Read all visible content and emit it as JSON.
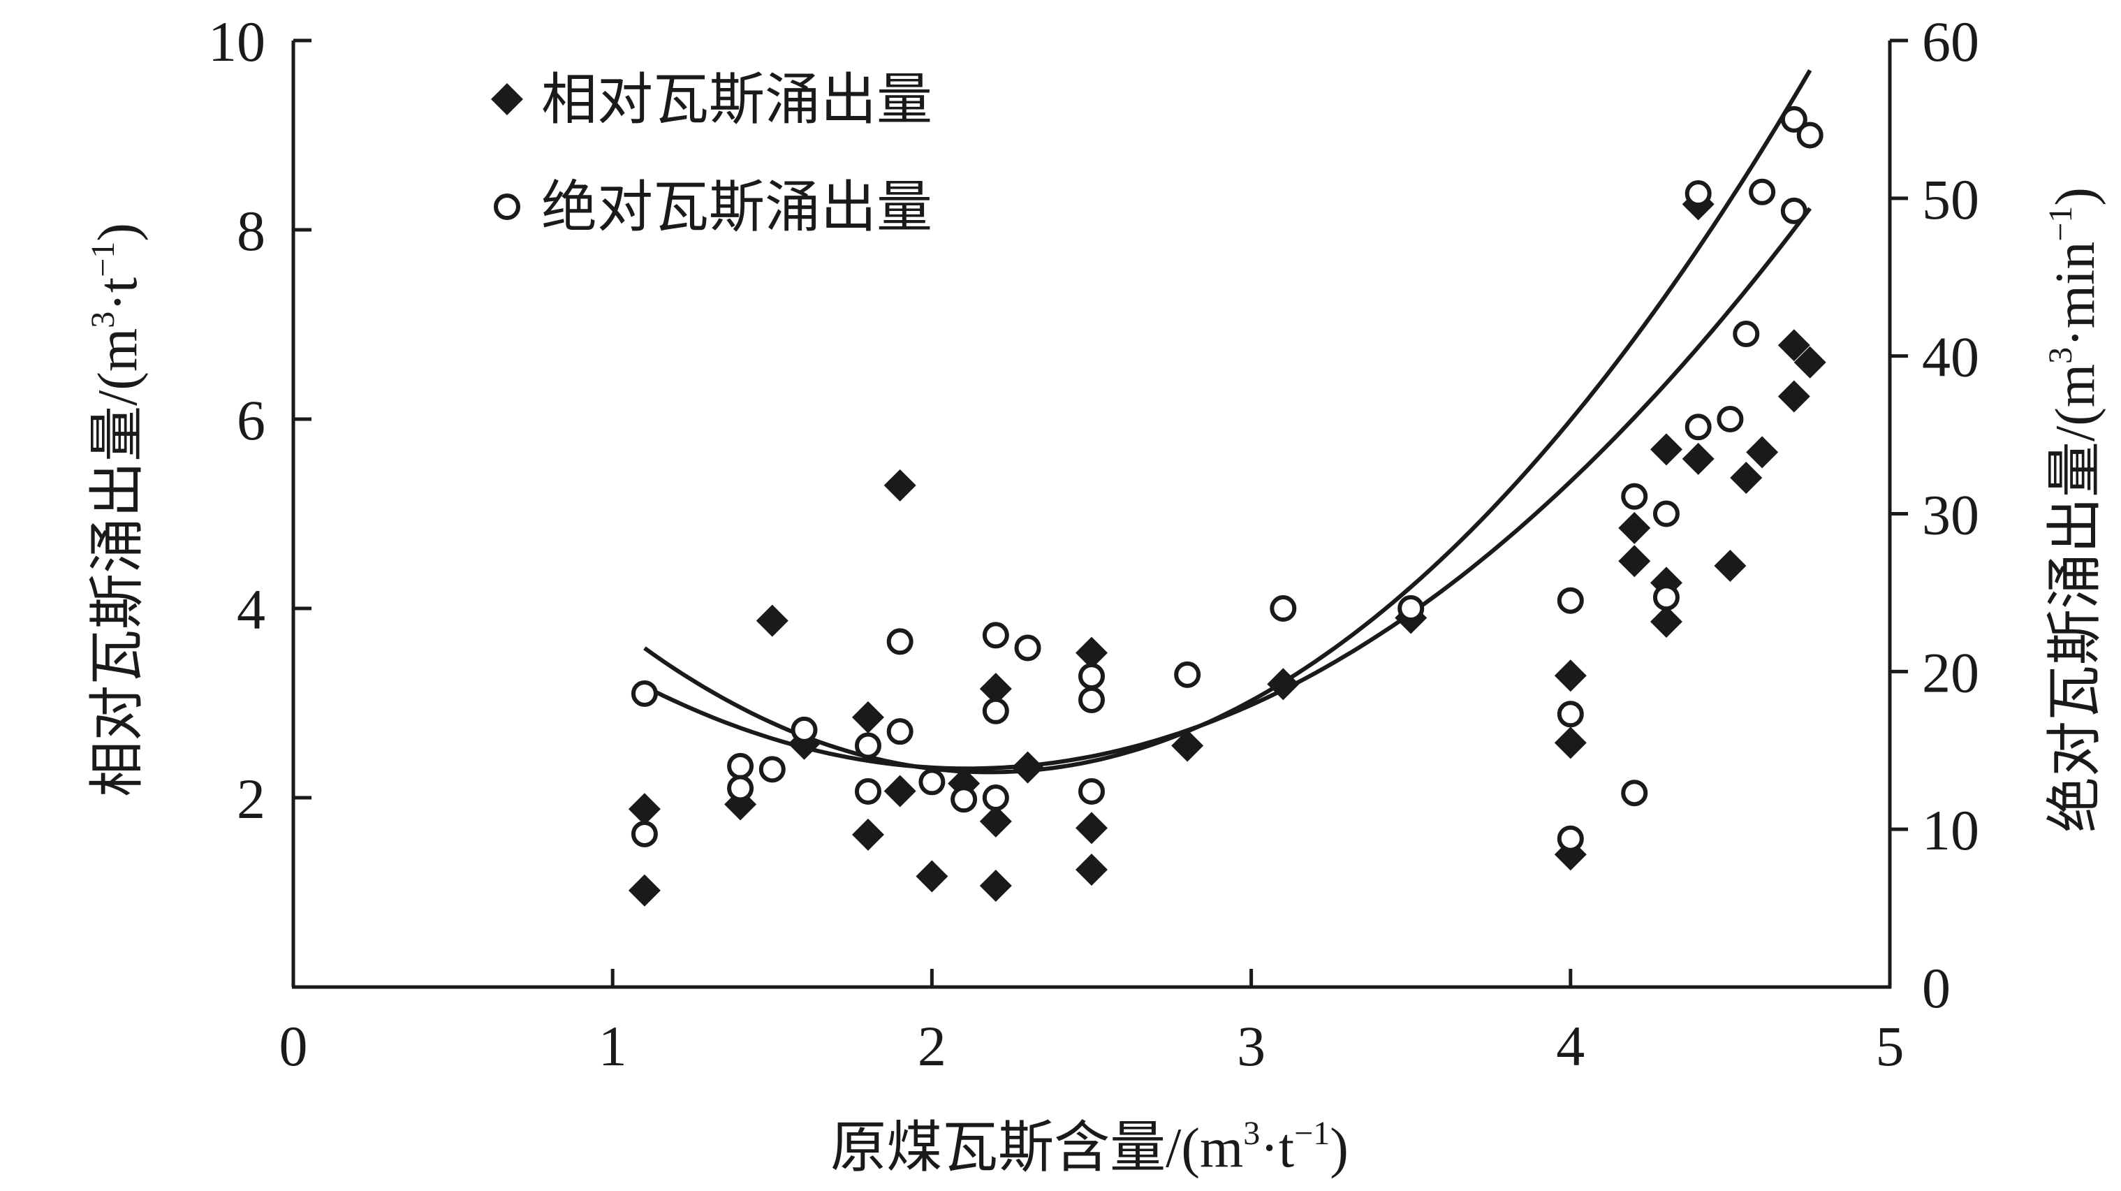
{
  "chart_data": {
    "type": "scatter",
    "xlabel": {
      "main": "原煤瓦斯含量/(m",
      "sup1": "3",
      "mid": "·t",
      "sup2": "−1",
      "end": ")"
    },
    "ylabel_left": {
      "main": "相对瓦斯涌出量/(m",
      "sup1": "3",
      "mid": "·t",
      "sup2": "−1",
      "end": ")"
    },
    "ylabel_right": {
      "main": "绝对瓦斯涌出量/(m",
      "sup1": "3",
      "mid": "·min",
      "sup2": "−1",
      "end": ")"
    },
    "xlim": [
      0,
      5
    ],
    "ylim_left": [
      0,
      10
    ],
    "ylim_right": [
      0,
      60
    ],
    "x_ticks": [
      "0",
      "1",
      "2",
      "3",
      "4",
      "5"
    ],
    "y_left_ticks": [
      "2",
      "4",
      "6",
      "8",
      "10"
    ],
    "y_right_ticks": [
      "0",
      "10",
      "20",
      "30",
      "40",
      "50",
      "60"
    ],
    "grid": false,
    "legend_position": "top-left",
    "series": [
      {
        "name": "相对瓦斯涌出量",
        "axis": "left",
        "marker": "filled-diamond",
        "points": [
          [
            1.1,
            1.88
          ],
          [
            1.1,
            1.02
          ],
          [
            1.4,
            1.93
          ],
          [
            1.5,
            3.87
          ],
          [
            1.6,
            2.57
          ],
          [
            1.8,
            2.85
          ],
          [
            1.8,
            1.61
          ],
          [
            1.9,
            5.3
          ],
          [
            1.9,
            2.07
          ],
          [
            2.0,
            1.17
          ],
          [
            2.1,
            2.15
          ],
          [
            2.2,
            3.15
          ],
          [
            2.2,
            1.75
          ],
          [
            2.2,
            1.07
          ],
          [
            2.3,
            2.32
          ],
          [
            2.5,
            3.53
          ],
          [
            2.5,
            1.68
          ],
          [
            2.5,
            1.24
          ],
          [
            2.8,
            2.55
          ],
          [
            3.1,
            3.2
          ],
          [
            3.5,
            3.9
          ],
          [
            4.0,
            3.29
          ],
          [
            4.0,
            2.58
          ],
          [
            4.0,
            1.4
          ],
          [
            4.2,
            4.85
          ],
          [
            4.2,
            4.5
          ],
          [
            4.3,
            5.68
          ],
          [
            4.3,
            4.27
          ],
          [
            4.3,
            3.86
          ],
          [
            4.4,
            8.27
          ],
          [
            4.4,
            5.58
          ],
          [
            4.5,
            4.45
          ],
          [
            4.55,
            5.38
          ],
          [
            4.6,
            5.65
          ],
          [
            4.7,
            6.78
          ],
          [
            4.7,
            6.24
          ],
          [
            4.75,
            6.6
          ]
        ]
      },
      {
        "name": "绝对瓦斯涌出量",
        "axis": "right",
        "marker": "open-circle",
        "points": [
          [
            1.1,
            18.6
          ],
          [
            1.1,
            9.7
          ],
          [
            1.4,
            14.0
          ],
          [
            1.4,
            12.6
          ],
          [
            1.5,
            13.8
          ],
          [
            1.6,
            16.3
          ],
          [
            1.8,
            15.3
          ],
          [
            1.8,
            12.4
          ],
          [
            1.9,
            21.9
          ],
          [
            1.9,
            16.2
          ],
          [
            2.0,
            13.0
          ],
          [
            2.1,
            11.9
          ],
          [
            2.2,
            22.3
          ],
          [
            2.2,
            17.5
          ],
          [
            2.2,
            12.0
          ],
          [
            2.3,
            21.5
          ],
          [
            2.5,
            19.7
          ],
          [
            2.5,
            18.2
          ],
          [
            2.5,
            12.4
          ],
          [
            2.8,
            19.8
          ],
          [
            3.1,
            24.0
          ],
          [
            3.5,
            24.0
          ],
          [
            4.0,
            24.5
          ],
          [
            4.0,
            17.3
          ],
          [
            4.0,
            9.4
          ],
          [
            4.2,
            31.1
          ],
          [
            4.2,
            12.3
          ],
          [
            4.3,
            30.0
          ],
          [
            4.3,
            24.7
          ],
          [
            4.4,
            50.3
          ],
          [
            4.4,
            35.5
          ],
          [
            4.5,
            36.0
          ],
          [
            4.55,
            41.4
          ],
          [
            4.6,
            50.4
          ],
          [
            4.7,
            55.0
          ],
          [
            4.7,
            49.2
          ],
          [
            4.75,
            54.0
          ]
        ]
      }
    ],
    "fit_curves": [
      {
        "series": "相对瓦斯涌出量",
        "axis": "left",
        "x_range": [
          1.1,
          4.75
        ],
        "quadratic": [
          0.8497,
          -3.587,
          6.0937
        ]
      },
      {
        "series": "绝对瓦斯涌出量",
        "axis": "left",
        "x_range": [
          1.1,
          4.75
        ],
        "quadratic": [
          1.123,
          -4.897,
          7.6085
        ]
      }
    ]
  }
}
